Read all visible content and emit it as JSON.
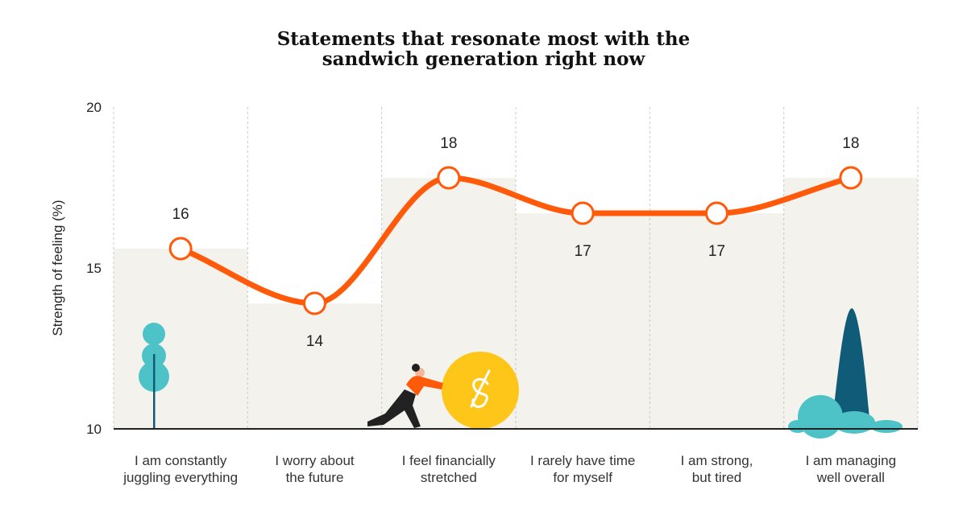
{
  "chart_data": {
    "type": "line",
    "title": "Statements that resonate most with the sandwich generation right now",
    "title_lines": [
      "Statements that resonate most with the",
      "sandwich generation right now"
    ],
    "ylabel": "Strength of feeling (%)",
    "xlabel": "",
    "ylim": [
      10,
      20
    ],
    "yticks": [
      "10",
      "15",
      "20"
    ],
    "grid": "vertical dashed",
    "categories": [
      [
        "I am constantly",
        "juggling everything"
      ],
      [
        "I worry about",
        "the future"
      ],
      [
        "I feel financially",
        "stretched"
      ],
      [
        "I rarely have time",
        "for myself"
      ],
      [
        "I am strong,",
        "but tired"
      ],
      [
        "I am managing",
        "well overall"
      ]
    ],
    "values": [
      15.6,
      13.9,
      17.8,
      16.7,
      16.7,
      17.8
    ],
    "data_labels": [
      "16",
      "14",
      "18",
      "17",
      "17",
      "18"
    ],
    "label_position": [
      "above",
      "below",
      "above",
      "below",
      "below",
      "above"
    ],
    "colors": {
      "line": "#FF5A0A",
      "column_fill": "#F4F2EC",
      "teal": "#4DC3C8",
      "dark_teal": "#0F5B78",
      "coin": "#FFC61A"
    }
  }
}
